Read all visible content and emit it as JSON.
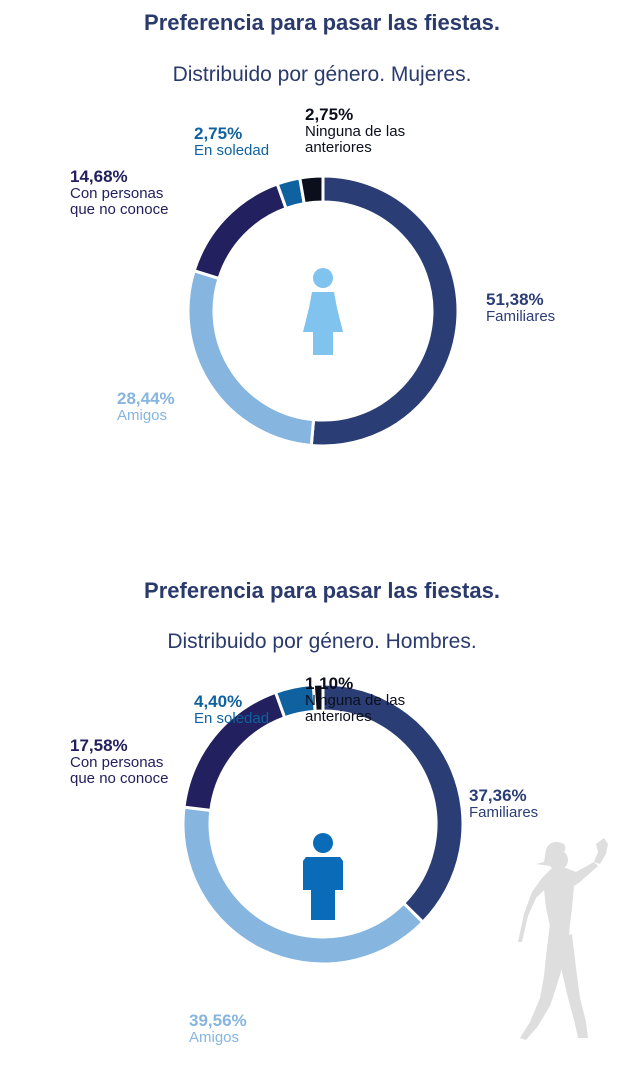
{
  "charts": [
    {
      "title": "Preferencia para pasar las fiestas.",
      "subtitle": "Distribuido por género. Mujeres.",
      "figure_color": "#7fc3ee",
      "labels": {
        "soledad": {
          "pct": "2,75%",
          "name": "En soledad"
        },
        "ninguna": {
          "pct": "2,75%",
          "name_lines": [
            "Ninguna de las",
            "anteriores"
          ]
        },
        "personas": {
          "pct": "14,68%",
          "name_lines": [
            "Con personas",
            "que no conoce"
          ]
        },
        "familiares": {
          "pct": "51,38%",
          "name": "Familiares"
        },
        "amigos": {
          "pct": "28,44%",
          "name": "Amigos"
        }
      }
    },
    {
      "title": "Preferencia para pasar las fiestas.",
      "subtitle": "Distribuido por género. Hombres.",
      "figure_color": "#0a6cb8",
      "labels": {
        "soledad": {
          "pct": "4,40%",
          "name": "En soledad"
        },
        "ninguna": {
          "pct": "1,10%",
          "name_lines": [
            "Ninguna de las",
            "anteriores"
          ]
        },
        "personas": {
          "pct": "17,58%",
          "name_lines": [
            "Con personas",
            "que no conoce"
          ]
        },
        "familiares": {
          "pct": "37,36%",
          "name": "Familiares"
        },
        "amigos": {
          "pct": "39,56%",
          "name": "Amigos"
        }
      }
    }
  ],
  "chart_data": [
    {
      "type": "pie",
      "title": "Preferencia para pasar las fiestas.",
      "subtitle": "Distribuido por género. Mujeres.",
      "categories": [
        "Familiares",
        "Amigos",
        "Con personas que no conoce",
        "En soledad",
        "Ninguna de las anteriores"
      ],
      "values": [
        51.38,
        28.44,
        14.68,
        2.75,
        2.75
      ],
      "colors": [
        "#2b3d75",
        "#86b5df",
        "#22205e",
        "#10619f",
        "#0b0f1c"
      ],
      "donut": true
    },
    {
      "type": "pie",
      "title": "Preferencia para pasar las fiestas.",
      "subtitle": "Distribuido por género. Hombres.",
      "categories": [
        "Familiares",
        "Amigos",
        "Con personas que no conoce",
        "En soledad",
        "Ninguna de las anteriores"
      ],
      "values": [
        37.36,
        39.56,
        17.58,
        4.4,
        1.1
      ],
      "colors": [
        "#2b3d75",
        "#86b5df",
        "#22205e",
        "#10619f",
        "#0b0f1c"
      ],
      "donut": true
    }
  ],
  "label_colors": {
    "familiares": "#2b3d75",
    "amigos": "#86b5df",
    "personas": "#22205e",
    "soledad": "#10619f",
    "ninguna": "#0b0f1c"
  }
}
